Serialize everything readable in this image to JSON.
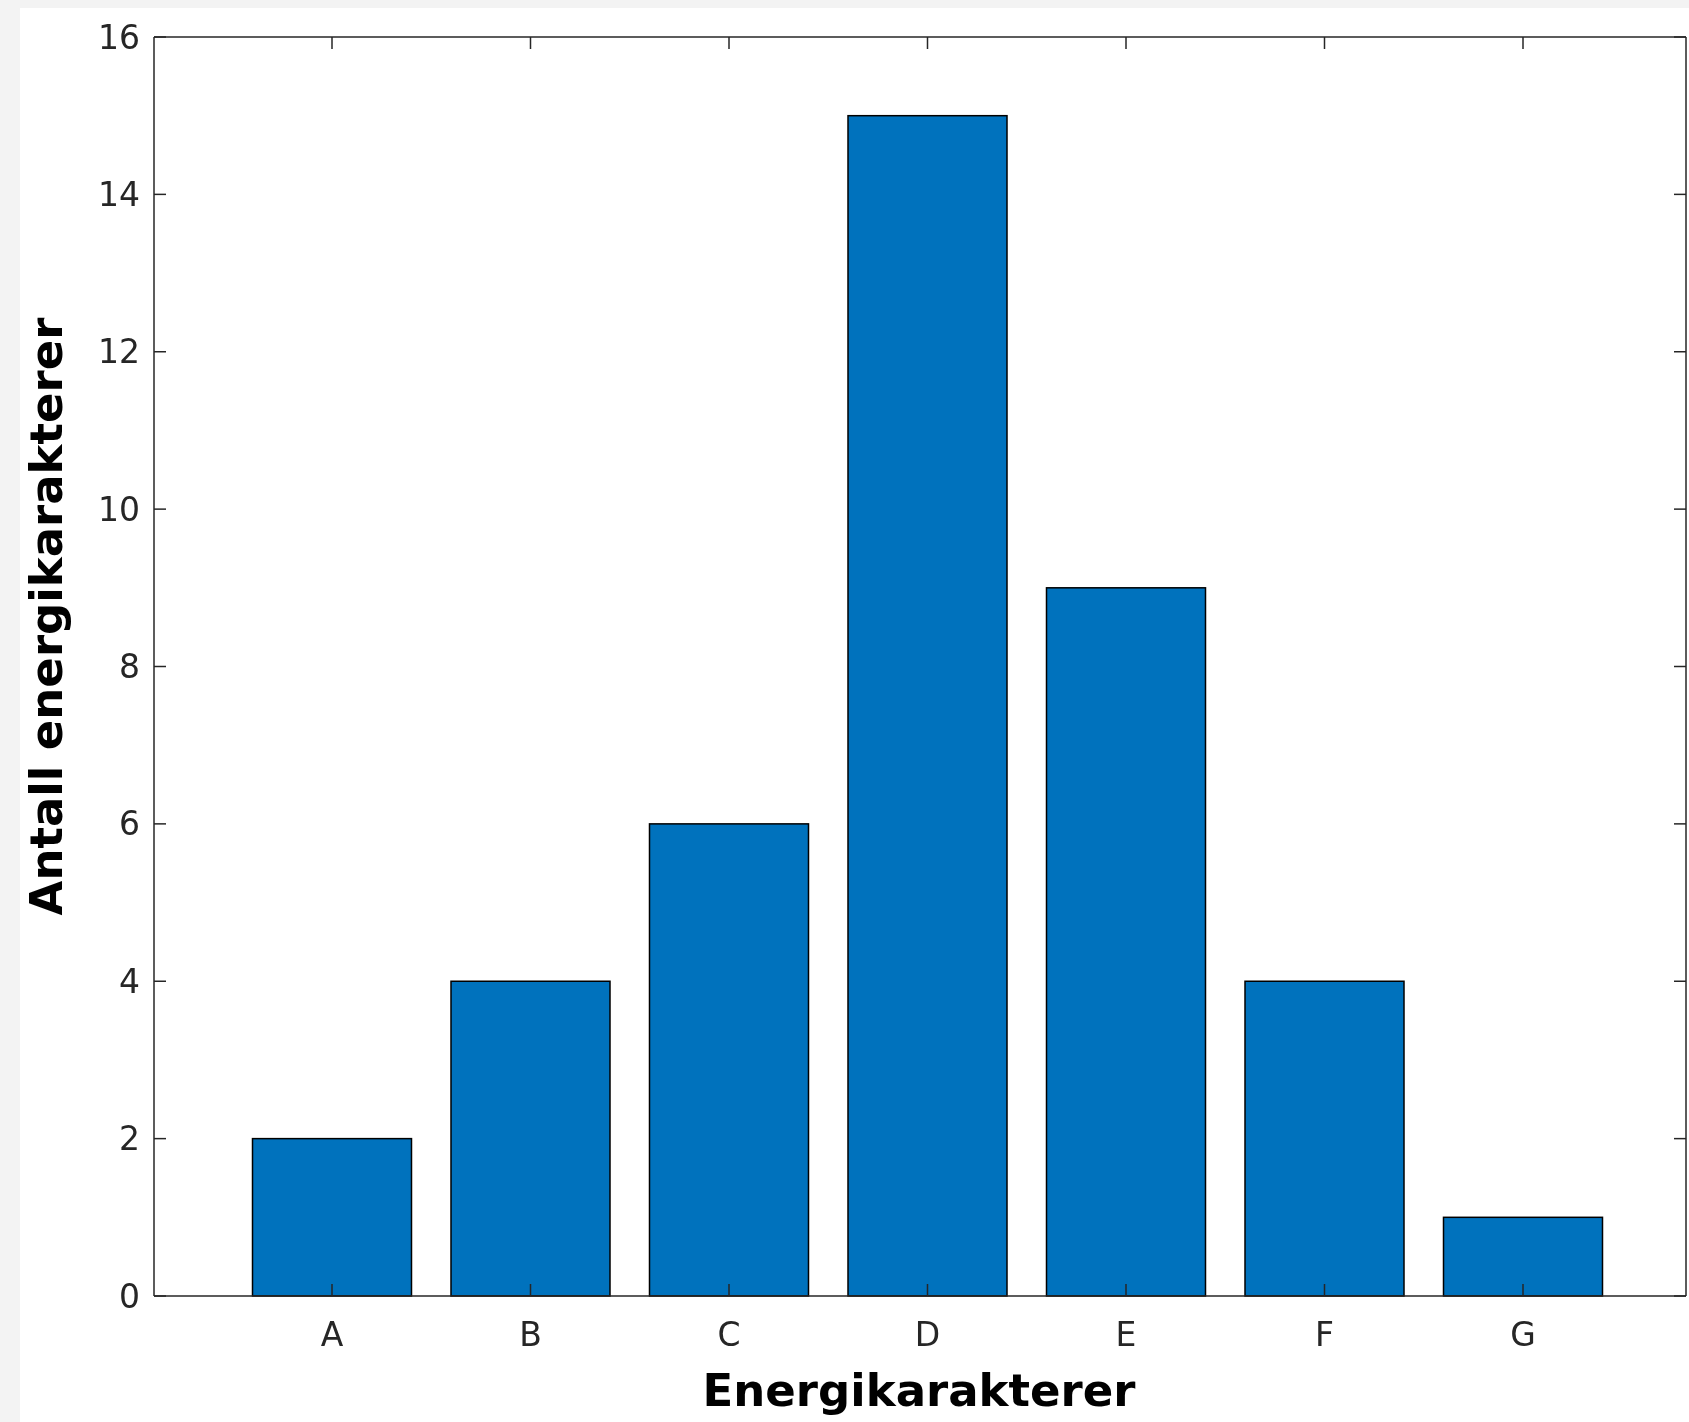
{
  "chart_data": {
    "type": "bar",
    "xlabel": "Energikarakterer",
    "ylabel": "Antall energikarakterer",
    "categories": [
      "A",
      "B",
      "C",
      "D",
      "E",
      "F",
      "G"
    ],
    "values": [
      2,
      4,
      6,
      15,
      9,
      4,
      1
    ],
    "color": "#0072bd",
    "ylim": [
      0,
      16
    ],
    "yticks": [
      0,
      2,
      4,
      6,
      8,
      10,
      12,
      14,
      16
    ]
  }
}
